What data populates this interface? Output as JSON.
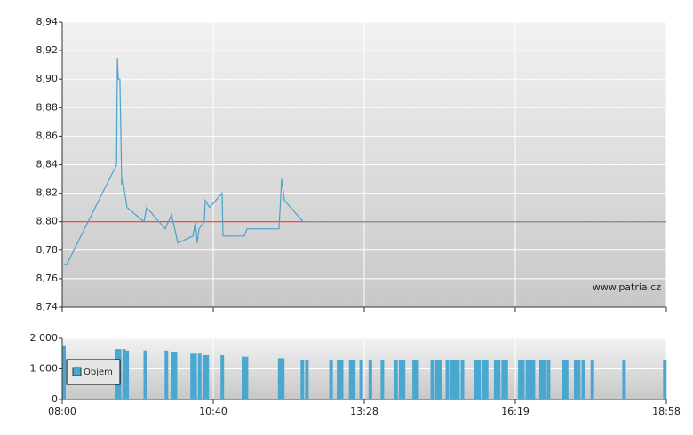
{
  "chart_data": [
    {
      "type": "line",
      "x": [
        0.01,
        0.03,
        0.36,
        0.365,
        0.371,
        0.382,
        0.394,
        0.4,
        0.429,
        0.541,
        0.559,
        0.682,
        0.724,
        0.765,
        0.865,
        0.882,
        0.894,
        0.906,
        0.941,
        0.947,
        0.976,
        1.059,
        1.065,
        1.206,
        1.224,
        1.435,
        1.453,
        1.471,
        1.594,
        4
      ],
      "series": [
        {
          "color": "#4aa3c9",
          "values": [
            8.77,
            8.77,
            8.84,
            8.915,
            8.9,
            8.9,
            8.826,
            8.83,
            8.81,
            8.8,
            8.81,
            8.795,
            8.805,
            8.785,
            8.79,
            8.8,
            8.785,
            8.795,
            8.8,
            8.815,
            8.81,
            8.82,
            8.79,
            8.79,
            8.795,
            8.795,
            8.83,
            8.815,
            8.8,
            8.8
          ]
        }
      ],
      "reference_line": {
        "value": 8.8,
        "color": "#e02020"
      },
      "xlim": [
        0,
        4
      ],
      "xticks": [
        0,
        1,
        2,
        3,
        4
      ],
      "ylim": [
        8.74,
        8.94
      ],
      "yticks": [
        {
          "value": 8.74,
          "label": "8,74"
        },
        {
          "value": 8.76,
          "label": "8,76"
        },
        {
          "value": 8.78,
          "label": "8,78"
        },
        {
          "value": 8.8,
          "label": "8,80"
        },
        {
          "value": 8.82,
          "label": "8,82"
        },
        {
          "value": 8.84,
          "label": "8,84"
        },
        {
          "value": 8.86,
          "label": "8,86"
        },
        {
          "value": 8.88,
          "label": "8,88"
        },
        {
          "value": 8.9,
          "label": "8,90"
        },
        {
          "value": 8.92,
          "label": "8,92"
        },
        {
          "value": 8.94,
          "label": "8,94"
        }
      ],
      "grid": true,
      "watermark": "www.patria.cz"
    },
    {
      "type": "bar",
      "x": [
        0.01,
        0.36,
        0.38,
        0.41,
        0.43,
        0.55,
        0.69,
        0.73,
        0.75,
        0.86,
        0.88,
        0.91,
        0.94,
        0.96,
        1.06,
        1.2,
        1.22,
        1.44,
        1.46,
        1.59,
        1.62,
        1.78,
        1.83,
        1.85,
        1.91,
        1.93,
        1.98,
        2.04,
        2.12,
        2.21,
        2.24,
        2.26,
        2.33,
        2.35,
        2.45,
        2.48,
        2.5,
        2.55,
        2.58,
        2.6,
        2.62,
        2.65,
        2.74,
        2.76,
        2.79,
        2.81,
        2.87,
        2.89,
        2.92,
        2.94,
        3.03,
        3.05,
        3.08,
        3.1,
        3.12,
        3.17,
        3.19,
        3.22,
        3.32,
        3.34,
        3.4,
        3.42,
        3.45,
        3.51,
        3.72,
        3.99
      ],
      "series": [
        {
          "name": "Objem",
          "color": "#4aa8d0",
          "values": [
            1750,
            1650,
            1650,
            1650,
            1600,
            1600,
            1600,
            1550,
            1550,
            1500,
            1500,
            1500,
            1450,
            1450,
            1450,
            1400,
            1400,
            1350,
            1350,
            1300,
            1300,
            1300,
            1300,
            1300,
            1300,
            1300,
            1300,
            1300,
            1300,
            1300,
            1300,
            1300,
            1300,
            1300,
            1300,
            1300,
            1300,
            1300,
            1300,
            1300,
            1300,
            1300,
            1300,
            1300,
            1300,
            1300,
            1300,
            1300,
            1300,
            1300,
            1300,
            1300,
            1300,
            1300,
            1300,
            1300,
            1300,
            1300,
            1300,
            1300,
            1300,
            1300,
            1300,
            1300,
            1300,
            1300
          ]
        }
      ],
      "xlim": [
        0,
        4
      ],
      "xticks": [
        {
          "value": 0,
          "label": "08:00"
        },
        {
          "value": 1,
          "label": "10:40"
        },
        {
          "value": 2,
          "label": "13:28"
        },
        {
          "value": 3,
          "label": "16:19"
        },
        {
          "value": 4,
          "label": "18:58"
        }
      ],
      "ylim": [
        0,
        2000
      ],
      "yticks": [
        0,
        {
          "value": 1000,
          "label": "1 000"
        },
        {
          "value": 2000,
          "label": "2 000"
        }
      ],
      "grid": true,
      "legend": "left"
    }
  ]
}
